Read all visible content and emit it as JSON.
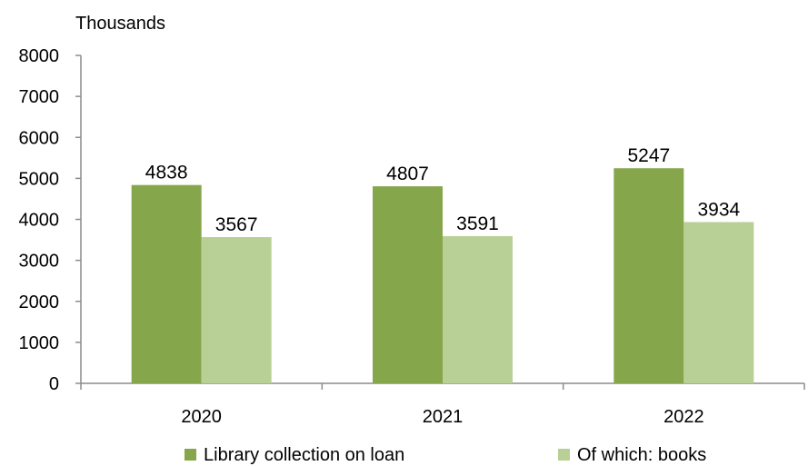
{
  "chart_data": {
    "type": "bar",
    "unit_label": "Thousands",
    "categories": [
      "2020",
      "2021",
      "2022"
    ],
    "series": [
      {
        "name": "Library collection on loan",
        "values": [
          4838,
          4807,
          5247
        ],
        "color": "#86a64b"
      },
      {
        "name": "Of which: books",
        "values": [
          3567,
          3591,
          3934
        ],
        "color": "#b8cf96"
      }
    ],
    "ylim": [
      0,
      8000
    ],
    "yticks": [
      0,
      1000,
      2000,
      3000,
      4000,
      5000,
      6000,
      7000,
      8000
    ],
    "grid": false,
    "legend_position": "bottom",
    "data_labels": true
  }
}
